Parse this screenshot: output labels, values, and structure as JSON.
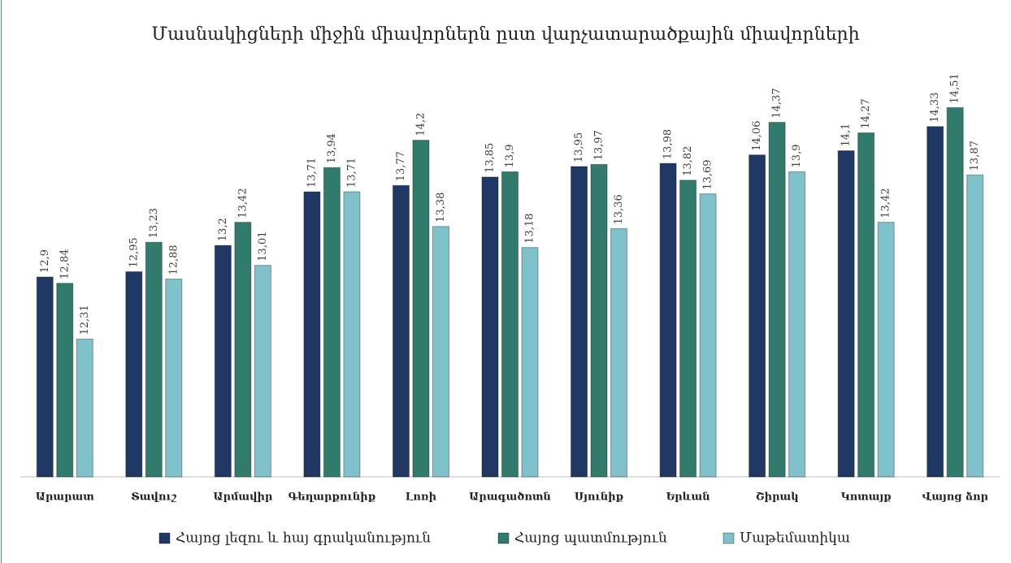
{
  "chart_data": {
    "type": "bar",
    "title": "Մասնակիցների միջին միավորներն ըստ վարչատարածքային միավորների",
    "categories": [
      "Արարատ",
      "Տավուշ",
      "Արմավիր",
      "Գեղարքունիք",
      "Լոռի",
      "Արագածոտն",
      "Սյունիք",
      "Երևան",
      "Շիրակ",
      "Կոտայք",
      "Վայոց ձոր"
    ],
    "series": [
      {
        "name": "Հայոց լեզու և հայ գրականություն",
        "color": "#1f3864",
        "values": [
          12.9,
          12.95,
          13.2,
          13.71,
          13.77,
          13.85,
          13.95,
          13.98,
          14.06,
          14.1,
          14.33
        ],
        "value_labels": [
          "12,9",
          "12,95",
          "13,2",
          "13,71",
          "13,77",
          "13,85",
          "13,95",
          "13,98",
          "14,06",
          "14,1",
          "14,33"
        ]
      },
      {
        "name": "Հայոց պատմություն",
        "color": "#317b6c",
        "values": [
          12.84,
          13.23,
          13.42,
          13.94,
          14.2,
          13.9,
          13.97,
          13.82,
          14.37,
          14.27,
          14.51
        ],
        "value_labels": [
          "12,84",
          "13,23",
          "13,42",
          "13,94",
          "14,2",
          "13,9",
          "13,97",
          "13,82",
          "14,37",
          "14,27",
          "14,51"
        ]
      },
      {
        "name": "Մաթեմատիկա",
        "color": "#7fc2cc",
        "values": [
          12.31,
          12.88,
          13.01,
          13.71,
          13.38,
          13.18,
          13.36,
          13.69,
          13.9,
          13.42,
          13.87
        ],
        "value_labels": [
          "12,31",
          "12,88",
          "13,01",
          "13,71",
          "13,38",
          "13,18",
          "13,36",
          "13,69",
          "13,9",
          "13,42",
          "13,87"
        ]
      }
    ],
    "ylim": [
      11,
      15
    ],
    "grid": false,
    "legend": "bottom"
  }
}
